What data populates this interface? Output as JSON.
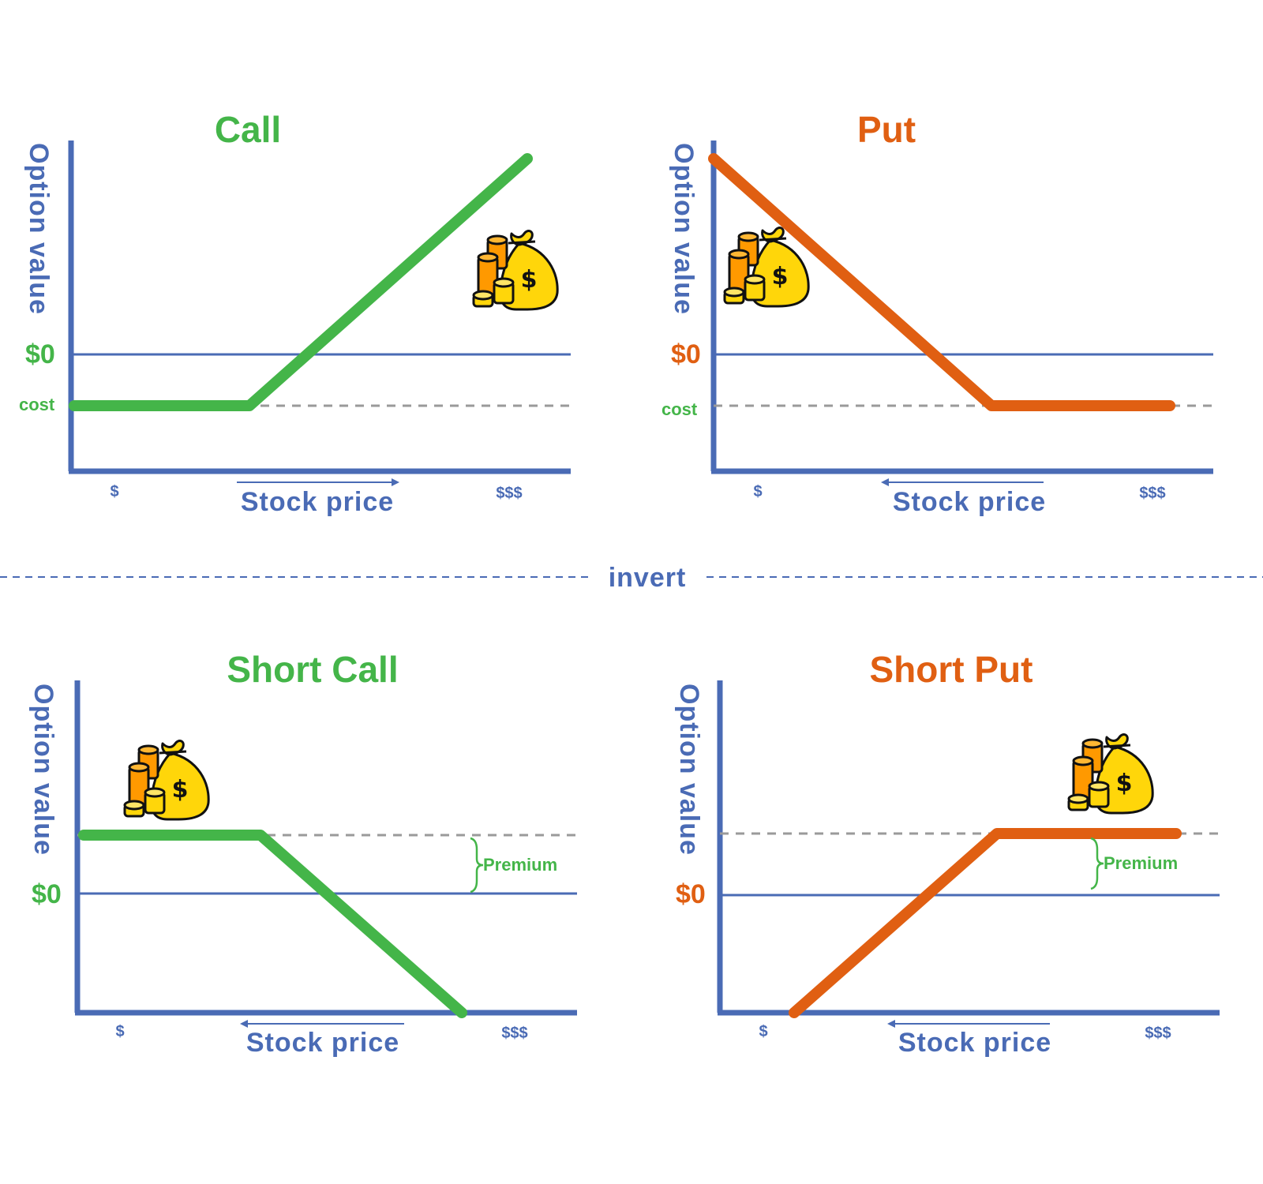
{
  "divider_label": "invert",
  "colors": {
    "axis": "#4a6bb5",
    "green": "#44b549",
    "orange": "#e05f12",
    "dash": "#9a9a9a"
  },
  "panels": [
    {
      "id": "call",
      "title": "Call",
      "color": "green",
      "ylabel": "Option value",
      "zero_label": "$0",
      "xlabel": "Stock price",
      "tick_low": "$",
      "tick_high": "$$$",
      "level_label": "cost",
      "level_label_color": "green",
      "arrow_direction": "right",
      "icon": "money-bag-coins-icon"
    },
    {
      "id": "put",
      "title": "Put",
      "color": "orange",
      "ylabel": "Option value",
      "zero_label": "$0",
      "xlabel": "Stock price",
      "tick_low": "$",
      "tick_high": "$$$",
      "level_label": "cost",
      "level_label_color": "green",
      "arrow_direction": "left",
      "icon": "money-bag-coins-icon"
    },
    {
      "id": "short-call",
      "title": "Short Call",
      "color": "green",
      "ylabel": "Option value",
      "zero_label": "$0",
      "xlabel": "Stock price",
      "tick_low": "$",
      "tick_high": "$$$",
      "level_label": "Premium",
      "level_label_color": "green",
      "arrow_direction": "left",
      "icon": "money-bag-coins-icon"
    },
    {
      "id": "short-put",
      "title": "Short Put",
      "color": "orange",
      "ylabel": "Option value",
      "zero_label": "$0",
      "xlabel": "Stock price",
      "tick_low": "$",
      "tick_high": "$$$",
      "level_label": "Premium",
      "level_label_color": "green",
      "arrow_direction": "left",
      "icon": "money-bag-coins-icon"
    }
  ]
}
